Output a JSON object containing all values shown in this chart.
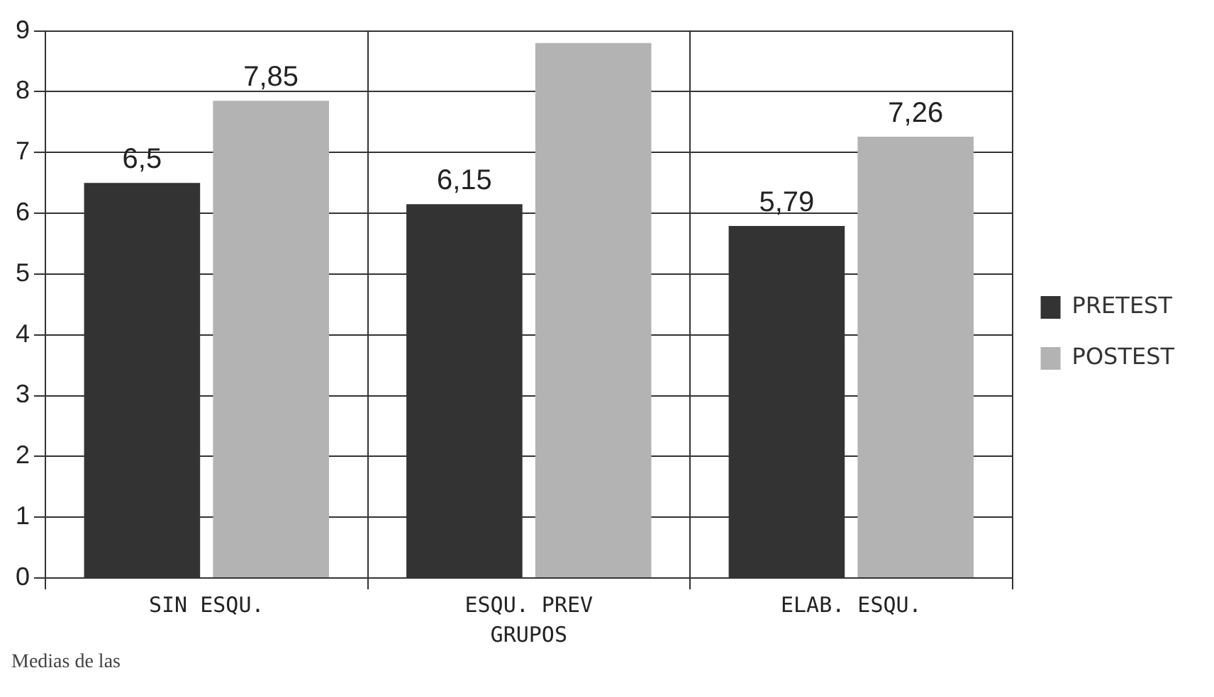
{
  "chart_data": {
    "type": "bar",
    "xlabel": "GRUPOS",
    "annotations": [
      "Medias de las"
    ],
    "categories": [
      "SIN ESQU.",
      "ESQU. PREV",
      "ELAB. ESQU."
    ],
    "series": [
      {
        "name": "PRETEST",
        "color": "#333333",
        "values": [
          6.5,
          6.15,
          5.79
        ],
        "value_labels": [
          "6,5",
          "6,15",
          "5,79"
        ]
      },
      {
        "name": "POSTEST",
        "color": "#b3b3b3",
        "values": [
          7.85,
          8.8,
          7.26
        ],
        "value_labels": [
          "7,85",
          null,
          "7,26"
        ]
      }
    ],
    "ylim": [
      0,
      9
    ],
    "yticks": [
      0,
      1,
      2,
      3,
      4,
      5,
      6,
      7,
      8,
      9
    ],
    "grid": true,
    "legend": "right"
  }
}
